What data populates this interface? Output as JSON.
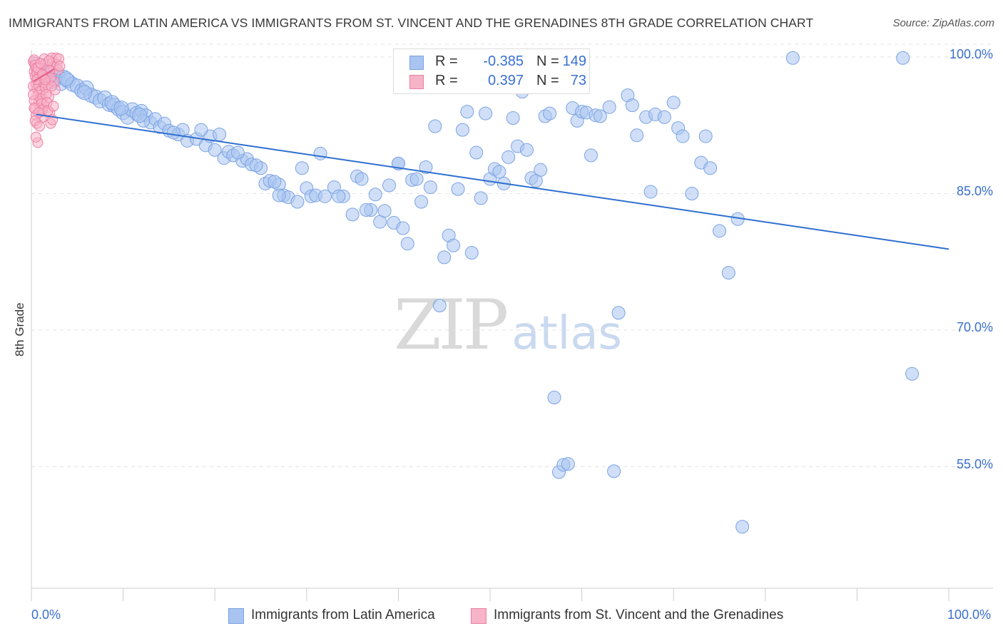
{
  "title": "IMMIGRANTS FROM LATIN AMERICA VS IMMIGRANTS FROM ST. VINCENT AND THE GRENADINES 8TH GRADE CORRELATION CHART",
  "source": "Source: ZipAtlas.com",
  "watermark": {
    "zip": "ZIP",
    "atlas": "atlas"
  },
  "colors": {
    "blue_fill": "#a9c4f0",
    "blue_stroke": "#7aa3e3",
    "blue_line": "#2f6fcf",
    "pink_fill": "#f7b3c8",
    "pink_stroke": "#ee7fa2",
    "pink_line": "#e55a88",
    "axis_text": "#3a6fd0",
    "grid": "#e3e3e3"
  },
  "legend_top": {
    "rows": [
      {
        "label": "R =",
        "r": "-0.385",
        "n_label": "N =",
        "n": "149",
        "swatch": "blue"
      },
      {
        "label": "R =",
        "r": "0.397",
        "n_label": "N =",
        "n": "73",
        "swatch": "pink"
      }
    ]
  },
  "legend_bottom": {
    "items": [
      {
        "label": "Immigrants from Latin America",
        "swatch": "blue"
      },
      {
        "label": "Immigrants from St. Vincent and the Grenadines",
        "swatch": "pink"
      }
    ]
  },
  "chart_data": {
    "type": "scatter",
    "title": "IMMIGRANTS FROM LATIN AMERICA VS IMMIGRANTS FROM ST. VINCENT AND THE GRENADINES 8TH GRADE CORRELATION CHART",
    "xlabel": "",
    "ylabel": "8th Grade",
    "xlim": [
      0,
      100
    ],
    "ylim": [
      38,
      102
    ],
    "x_tick_labels": [
      {
        "value": 0,
        "label": "0.0%"
      },
      {
        "value": 100,
        "label": "100.0%"
      }
    ],
    "y_tick_labels": [
      {
        "value": 100,
        "label": "100.0%"
      },
      {
        "value": 85,
        "label": "85.0%"
      },
      {
        "value": 70,
        "label": "70.0%"
      },
      {
        "value": 55,
        "label": "55.0%"
      }
    ],
    "grid": "horizontal dashed",
    "legend_position": "top-center",
    "series": [
      {
        "name": "Immigrants from Latin America",
        "color": "blue",
        "R": -0.385,
        "N": 149,
        "trend": {
          "x": [
            0.5,
            100
          ],
          "y": [
            93.7,
            78.9
          ]
        },
        "points": [
          [
            0.6,
            99.2
          ],
          [
            0.8,
            98.6
          ],
          [
            1.0,
            98.0
          ],
          [
            1.2,
            97.6
          ],
          [
            1.4,
            98.3
          ],
          [
            1.6,
            98.8
          ],
          [
            1.8,
            97.9
          ],
          [
            2.0,
            98.1
          ],
          [
            2.2,
            97.3
          ],
          [
            2.4,
            98.4
          ],
          [
            2.6,
            97.5
          ],
          [
            2.9,
            98.0
          ],
          [
            3.2,
            97.1
          ],
          [
            3.5,
            97.8
          ],
          [
            4.0,
            97.4
          ],
          [
            4.5,
            97.0
          ],
          [
            5.0,
            96.8
          ],
          [
            5.5,
            96.3
          ],
          [
            6.0,
            96.6
          ],
          [
            6.5,
            95.8
          ],
          [
            7.0,
            95.6
          ],
          [
            7.5,
            95.2
          ],
          [
            8.0,
            95.5
          ],
          [
            8.5,
            94.8
          ],
          [
            9.0,
            94.7
          ],
          [
            9.5,
            94.3
          ],
          [
            10.0,
            93.9
          ],
          [
            10.5,
            93.4
          ],
          [
            11.0,
            94.2
          ],
          [
            11.5,
            93.8
          ],
          [
            12.0,
            94.1
          ],
          [
            12.5,
            93.6
          ],
          [
            13.0,
            92.8
          ],
          [
            13.5,
            93.2
          ],
          [
            14.0,
            92.3
          ],
          [
            14.5,
            92.7
          ],
          [
            15.0,
            91.9
          ],
          [
            16.0,
            91.5
          ],
          [
            16.5,
            92.0
          ],
          [
            17.0,
            90.8
          ],
          [
            18.0,
            91.0
          ],
          [
            19.0,
            90.3
          ],
          [
            19.5,
            91.3
          ],
          [
            20.0,
            89.8
          ],
          [
            21.0,
            88.9
          ],
          [
            21.5,
            89.6
          ],
          [
            22.0,
            89.2
          ],
          [
            23.0,
            88.6
          ],
          [
            23.5,
            88.8
          ],
          [
            24.0,
            88.2
          ],
          [
            25.0,
            87.8
          ],
          [
            25.5,
            86.1
          ],
          [
            26.0,
            86.4
          ],
          [
            27.0,
            86.0
          ],
          [
            27.5,
            84.8
          ],
          [
            28.0,
            84.6
          ],
          [
            29.0,
            84.1
          ],
          [
            30.0,
            85.6
          ],
          [
            30.5,
            84.7
          ],
          [
            31.0,
            84.8
          ],
          [
            32.0,
            84.7
          ],
          [
            33.0,
            85.7
          ],
          [
            34.0,
            84.7
          ],
          [
            35.0,
            82.7
          ],
          [
            35.5,
            86.9
          ],
          [
            36.0,
            86.6
          ],
          [
            37.0,
            83.2
          ],
          [
            37.5,
            84.9
          ],
          [
            38.0,
            81.9
          ],
          [
            38.5,
            83.1
          ],
          [
            39.0,
            85.9
          ],
          [
            39.5,
            81.8
          ],
          [
            40.0,
            88.3
          ],
          [
            40.5,
            81.2
          ],
          [
            41.0,
            79.5
          ],
          [
            41.5,
            86.5
          ],
          [
            42.0,
            86.6
          ],
          [
            42.5,
            84.1
          ],
          [
            43.0,
            87.9
          ],
          [
            43.5,
            85.7
          ],
          [
            44.0,
            92.4
          ],
          [
            44.5,
            72.7
          ],
          [
            45.0,
            78.0
          ],
          [
            45.5,
            80.4
          ],
          [
            46.0,
            79.3
          ],
          [
            46.5,
            85.5
          ],
          [
            47.0,
            92.0
          ],
          [
            47.5,
            94.0
          ],
          [
            48.0,
            78.5
          ],
          [
            48.5,
            89.5
          ],
          [
            49.0,
            84.5
          ],
          [
            49.5,
            93.8
          ],
          [
            50.0,
            86.6
          ],
          [
            50.5,
            87.7
          ],
          [
            51.0,
            87.4
          ],
          [
            51.5,
            86.1
          ],
          [
            52.0,
            89.0
          ],
          [
            52.5,
            93.3
          ],
          [
            53.0,
            90.2
          ],
          [
            53.5,
            96.2
          ],
          [
            54.0,
            89.8
          ],
          [
            54.5,
            86.7
          ],
          [
            55.0,
            86.4
          ],
          [
            55.5,
            87.6
          ],
          [
            56.0,
            93.5
          ],
          [
            56.5,
            93.8
          ],
          [
            57.0,
            62.6
          ],
          [
            57.5,
            54.4
          ],
          [
            58.0,
            55.2
          ],
          [
            58.5,
            55.3
          ],
          [
            59.0,
            94.4
          ],
          [
            59.5,
            93.0
          ],
          [
            60.0,
            94.0
          ],
          [
            60.5,
            93.9
          ],
          [
            61.0,
            89.2
          ],
          [
            61.5,
            93.6
          ],
          [
            62.0,
            93.5
          ],
          [
            63.0,
            94.5
          ],
          [
            63.5,
            54.5
          ],
          [
            64.0,
            71.9
          ],
          [
            65.0,
            95.8
          ],
          [
            65.5,
            94.7
          ],
          [
            66.0,
            91.4
          ],
          [
            67.0,
            93.4
          ],
          [
            67.5,
            85.2
          ],
          [
            68.0,
            93.7
          ],
          [
            69.0,
            93.4
          ],
          [
            70.0,
            95.0
          ],
          [
            70.5,
            92.2
          ],
          [
            71.0,
            91.3
          ],
          [
            72.0,
            85.0
          ],
          [
            73.0,
            88.4
          ],
          [
            73.5,
            91.3
          ],
          [
            74.0,
            87.8
          ],
          [
            75.0,
            80.9
          ],
          [
            76.0,
            76.3
          ],
          [
            77.0,
            82.2
          ],
          [
            77.5,
            48.4
          ],
          [
            83.0,
            99.9
          ],
          [
            95.0,
            99.9
          ],
          [
            96.0,
            65.2
          ],
          [
            12.2,
            93.0
          ],
          [
            20.5,
            91.5
          ],
          [
            29.5,
            87.8
          ],
          [
            33.5,
            84.7
          ],
          [
            8.8,
            95.0
          ],
          [
            5.8,
            96.1
          ],
          [
            3.8,
            97.6
          ],
          [
            24.5,
            88.1
          ],
          [
            26.5,
            86.3
          ],
          [
            31.5,
            89.4
          ],
          [
            36.5,
            83.2
          ],
          [
            15.5,
            91.7
          ],
          [
            18.5,
            92.0
          ],
          [
            9.8,
            94.4
          ],
          [
            11.8,
            93.6
          ],
          [
            22.5,
            89.5
          ],
          [
            27.0,
            84.8
          ],
          [
            40.0,
            88.3
          ]
        ]
      },
      {
        "name": "Immigrants from St. Vincent and the Grenadines",
        "color": "pink",
        "R": 0.397,
        "N": 73,
        "trend": {
          "x": [
            0.2,
            2.5
          ],
          "y": [
            97.3,
            98.7
          ]
        },
        "points": [
          [
            0.2,
            99.5
          ],
          [
            0.3,
            98.4
          ],
          [
            0.4,
            97.9
          ],
          [
            0.5,
            97.0
          ],
          [
            0.6,
            96.5
          ],
          [
            0.7,
            95.8
          ],
          [
            0.8,
            95.1
          ],
          [
            0.9,
            94.6
          ],
          [
            1.0,
            94.0
          ],
          [
            1.1,
            93.3
          ],
          [
            0.2,
            96.8
          ],
          [
            0.3,
            95.2
          ],
          [
            0.4,
            94.3
          ],
          [
            0.5,
            93.6
          ],
          [
            0.6,
            92.7
          ],
          [
            0.7,
            90.6
          ],
          [
            0.8,
            99.0
          ],
          [
            0.9,
            98.2
          ],
          [
            1.0,
            97.4
          ],
          [
            1.1,
            96.3
          ],
          [
            1.2,
            95.5
          ],
          [
            1.3,
            94.8
          ],
          [
            1.4,
            99.8
          ],
          [
            1.5,
            99.2
          ],
          [
            1.6,
            98.6
          ],
          [
            1.7,
            97.8
          ],
          [
            1.8,
            96.9
          ],
          [
            1.9,
            95.6
          ],
          [
            2.0,
            93.9
          ],
          [
            2.1,
            92.7
          ],
          [
            2.2,
            99.9
          ],
          [
            2.3,
            99.4
          ],
          [
            2.4,
            98.9
          ],
          [
            2.5,
            97.3
          ],
          [
            2.6,
            96.4
          ],
          [
            2.7,
            99.9
          ],
          [
            2.8,
            99.2
          ],
          [
            2.9,
            98.6
          ],
          [
            3.0,
            99.8
          ],
          [
            3.1,
            99.0
          ],
          [
            0.3,
            99.7
          ],
          [
            0.4,
            99.1
          ],
          [
            0.5,
            98.8
          ],
          [
            0.6,
            98.3
          ],
          [
            0.7,
            97.6
          ],
          [
            0.8,
            96.9
          ],
          [
            0.9,
            96.2
          ],
          [
            1.0,
            95.4
          ],
          [
            1.1,
            94.9
          ],
          [
            1.2,
            94.2
          ],
          [
            1.3,
            98.0
          ],
          [
            1.4,
            97.2
          ],
          [
            1.5,
            96.7
          ],
          [
            1.6,
            95.9
          ],
          [
            1.7,
            95.0
          ],
          [
            1.8,
            94.1
          ],
          [
            1.9,
            99.6
          ],
          [
            2.0,
            98.5
          ],
          [
            2.1,
            97.7
          ],
          [
            2.2,
            96.8
          ],
          [
            2.3,
            93.1
          ],
          [
            2.4,
            94.6
          ],
          [
            0.2,
            95.9
          ],
          [
            0.3,
            94.4
          ],
          [
            0.4,
            93.0
          ],
          [
            0.5,
            91.2
          ],
          [
            0.6,
            97.5
          ],
          [
            0.7,
            98.8
          ],
          [
            0.8,
            93.9
          ],
          [
            0.9,
            92.4
          ],
          [
            1.0,
            99.3
          ],
          [
            1.2,
            98.1
          ],
          [
            1.5,
            97.5
          ]
        ]
      }
    ]
  }
}
